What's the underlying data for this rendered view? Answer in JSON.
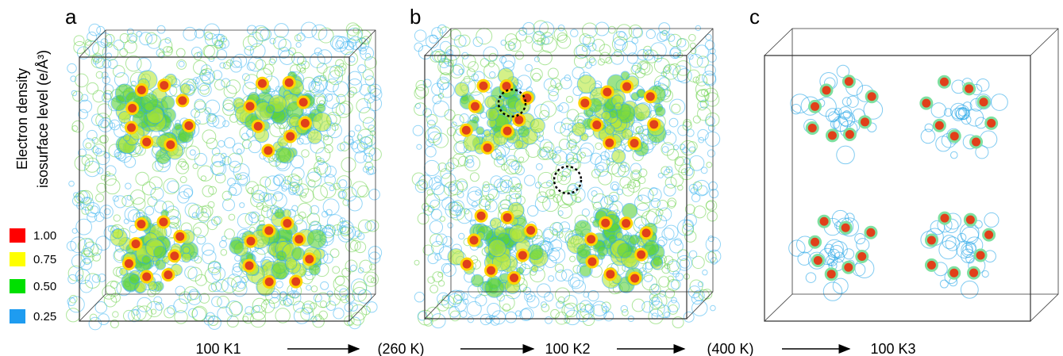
{
  "panels": [
    {
      "label": "a"
    },
    {
      "label": "b"
    },
    {
      "label": "c"
    }
  ],
  "legend": {
    "title_line1": "Electron density",
    "title_line2": "isosurface level (e/Å³)",
    "items": [
      {
        "label": "1.00",
        "color": "#ff0000"
      },
      {
        "label": "0.75",
        "color": "#ffff00"
      },
      {
        "label": "0.50",
        "color": "#00e000"
      },
      {
        "label": "0.25",
        "color": "#1e9cf0"
      }
    ]
  },
  "sequence": [
    "100 K1",
    "(260 K)",
    "100 K2",
    "(400 K)",
    "100 K3"
  ]
}
